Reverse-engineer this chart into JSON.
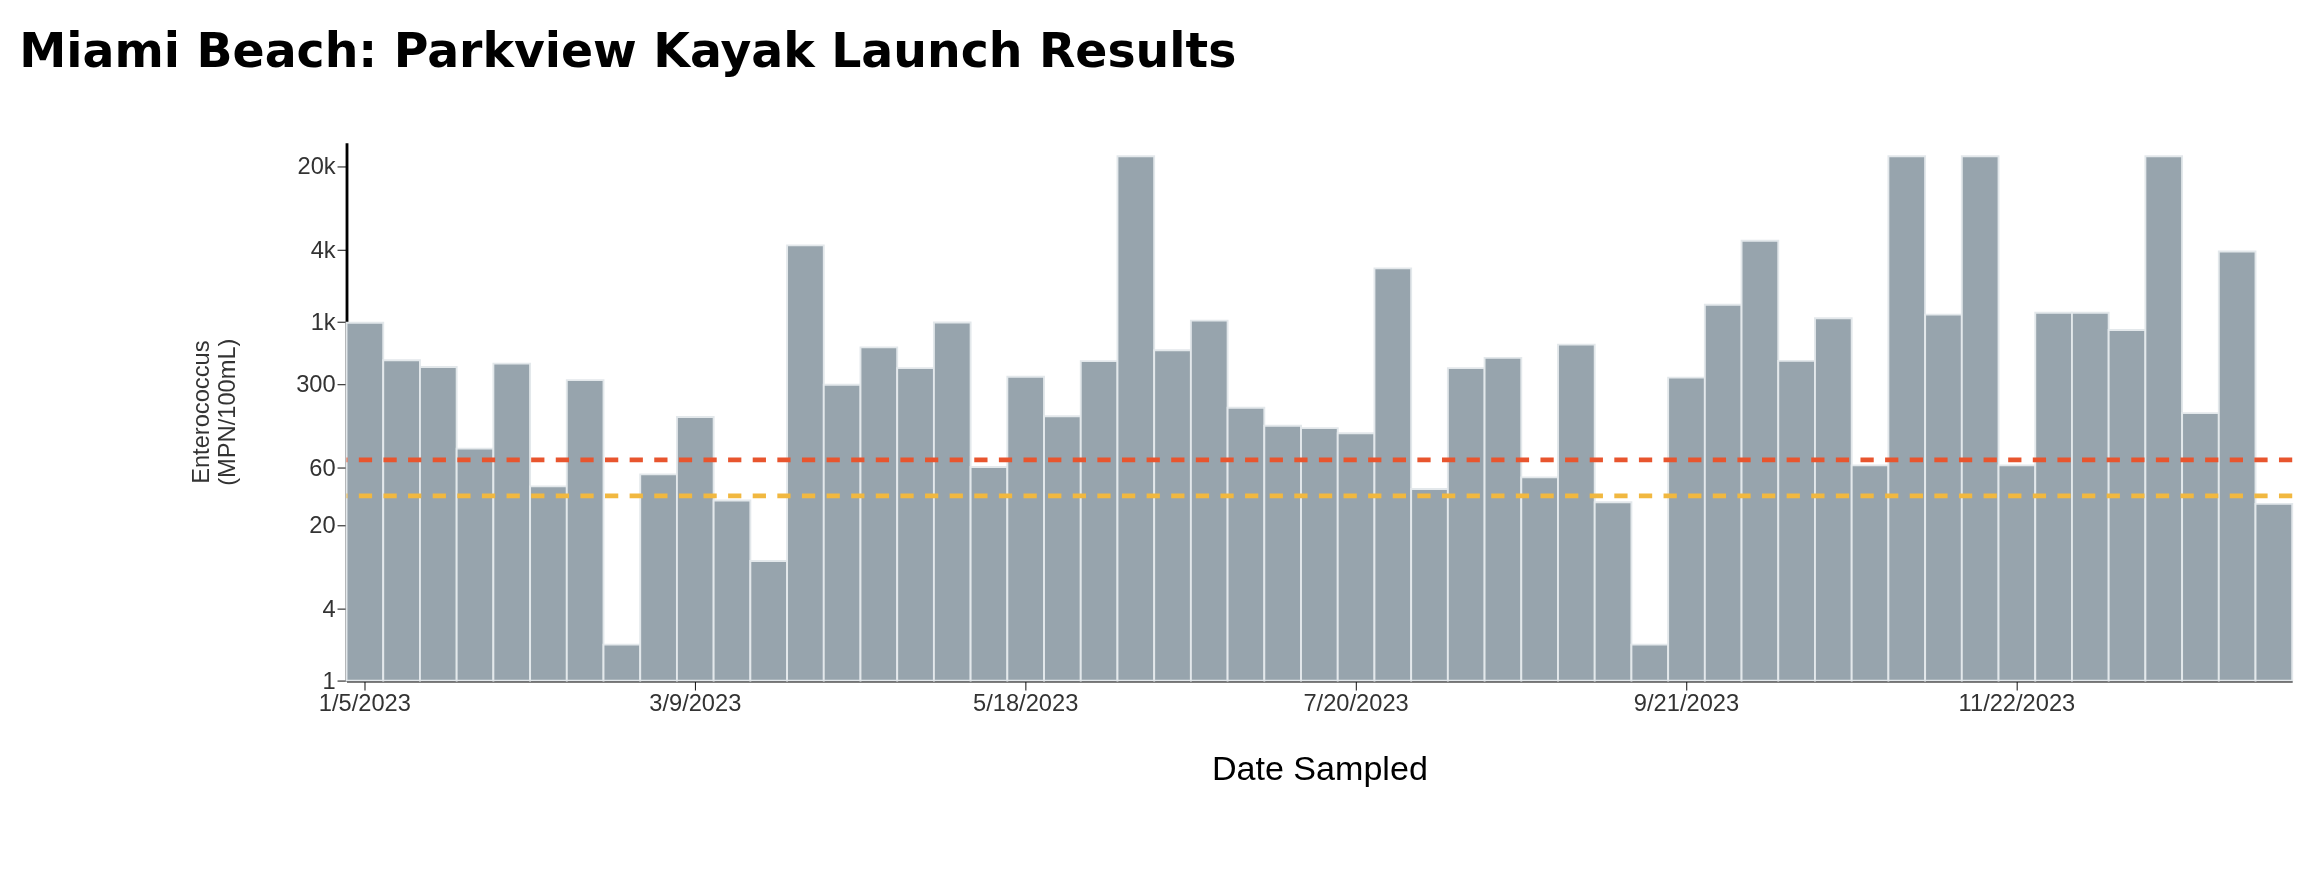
{
  "chart_data": {
    "type": "bar",
    "title": "Miami Beach: Parkview Kayak Launch Results",
    "xlabel": "Date Sampled",
    "ylabel": "Enterococcus\n(MPN/100mL)",
    "categories": [
      "1/5/2023",
      null,
      null,
      null,
      null,
      null,
      null,
      null,
      null,
      "3/9/2023",
      null,
      null,
      null,
      null,
      null,
      null,
      null,
      null,
      "5/18/2023",
      null,
      null,
      null,
      null,
      null,
      null,
      null,
      null,
      "7/20/2023",
      null,
      null,
      null,
      null,
      null,
      null,
      null,
      null,
      "9/21/2023",
      null,
      null,
      null,
      null,
      null,
      null,
      null,
      null,
      "11/22/2023",
      null,
      null,
      null,
      null,
      null,
      null,
      null
    ],
    "values": [
      980,
      476,
      418,
      87,
      446,
      42,
      325,
      2,
      53,
      160,
      32,
      10,
      4350,
      297,
      610,
      409,
      985,
      61,
      347,
      162,
      468,
      24196,
      577,
      1021,
      191,
      135,
      129,
      117,
      2793,
      40,
      409,
      499,
      50,
      643,
      31,
      2,
      341,
      1386,
      4755,
      471,
      1068,
      63,
      24196,
      1147,
      24196,
      63,
      1189,
      1189,
      853,
      24196,
      172,
      3866,
      30
    ],
    "color": "#97a4ad",
    "log": true,
    "ylim": [
      1,
      31300
    ],
    "yticks": [
      1,
      4,
      20,
      60,
      300,
      {
        "value": 1000,
        "label": "1k"
      },
      {
        "value": 4000,
        "label": "4k"
      },
      {
        "value": 20000,
        "label": "20k"
      }
    ],
    "ref_lines": [
      {
        "axis": "y",
        "value": 70,
        "color": "#e8552e",
        "line_style": "dashed"
      },
      {
        "axis": "y",
        "value": 35,
        "color": "#f1b840",
        "line_style": "dashed"
      }
    ],
    "grid": false
  }
}
